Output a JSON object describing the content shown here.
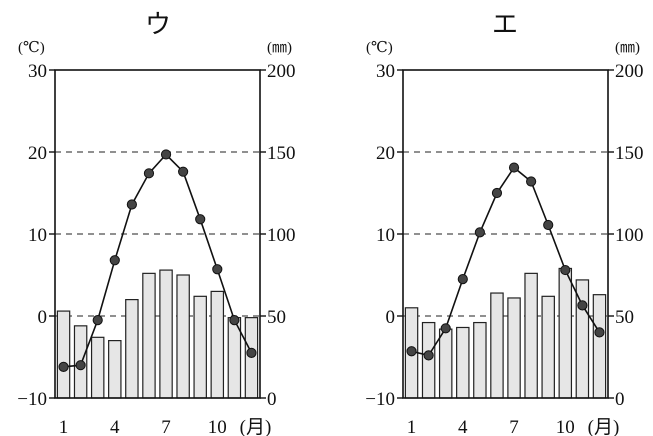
{
  "chart_data": [
    {
      "type": "bar+line",
      "title": "ウ",
      "left_axis_unit": "(℃)",
      "right_axis_unit": "(㎜)",
      "left_ylim": [
        -10,
        30
      ],
      "left_ticks": [
        "30",
        "20",
        "10",
        "0",
        "−10"
      ],
      "right_ylim": [
        0,
        200
      ],
      "right_ticks": [
        "200",
        "150",
        "100",
        "50",
        "0"
      ],
      "gridlines_dashed_at_temperature": [
        20,
        10,
        0
      ],
      "x_ticks": [
        "1",
        "4",
        "7",
        "10"
      ],
      "x_unit": "(月)",
      "months": [
        1,
        2,
        3,
        4,
        5,
        6,
        7,
        8,
        9,
        10,
        11,
        12
      ],
      "temperature_c": [
        -6.2,
        -6.0,
        -0.5,
        6.8,
        13.6,
        17.4,
        19.7,
        17.6,
        11.8,
        5.7,
        -0.5,
        -4.5
      ],
      "precipitation_mm": [
        53,
        44,
        37,
        35,
        60,
        76,
        78,
        75,
        62,
        65,
        49,
        49
      ],
      "bar_color": "#e6e6e6",
      "line_color": "#111111",
      "marker_color": "#444444"
    },
    {
      "type": "bar+line",
      "title": "エ",
      "left_axis_unit": "(℃)",
      "right_axis_unit": "(㎜)",
      "left_ylim": [
        -10,
        30
      ],
      "left_ticks": [
        "30",
        "20",
        "10",
        "0",
        "−10"
      ],
      "right_ylim": [
        0,
        200
      ],
      "right_ticks": [
        "200",
        "150",
        "100",
        "50",
        "0"
      ],
      "gridlines_dashed_at_temperature": [
        20,
        10,
        0
      ],
      "x_ticks": [
        "1",
        "4",
        "7",
        "10"
      ],
      "x_unit": "(月)",
      "months": [
        1,
        2,
        3,
        4,
        5,
        6,
        7,
        8,
        9,
        10,
        11,
        12
      ],
      "temperature_c": [
        -4.3,
        -4.8,
        -1.5,
        4.5,
        10.2,
        15.0,
        18.1,
        16.4,
        11.1,
        5.6,
        1.3,
        -2.0
      ],
      "precipitation_mm": [
        55,
        46,
        42,
        43,
        46,
        64,
        61,
        76,
        62,
        79,
        72,
        63
      ],
      "bar_color": "#e6e6e6",
      "line_color": "#111111",
      "marker_color": "#444444"
    }
  ]
}
